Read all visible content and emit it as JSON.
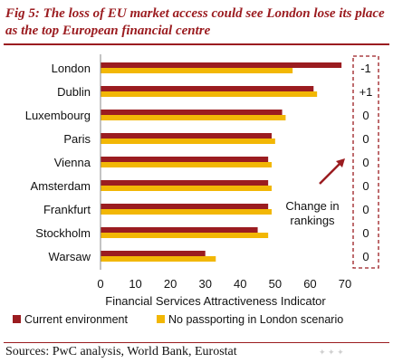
{
  "header": {
    "title": "Fig 5: The loss of EU market access could see London lose its place as the top European financial centre"
  },
  "footer": {
    "source": "Sources: PwC analysis, World Bank, Eurostat"
  },
  "chart_data": {
    "type": "bar",
    "orientation": "horizontal",
    "categories": [
      "London",
      "Dublin",
      "Luxembourg",
      "Paris",
      "Vienna",
      "Amsterdam",
      "Frankfurt",
      "Stockholm",
      "Warsaw"
    ],
    "series": [
      {
        "name": "Current environment",
        "color": "#9b1c20",
        "values": [
          69,
          61,
          52,
          49,
          48,
          48,
          48,
          45,
          30
        ]
      },
      {
        "name": "No passporting in London scenario",
        "color": "#f2b705",
        "values": [
          55,
          62,
          53,
          50,
          49,
          49,
          49,
          48,
          33
        ]
      }
    ],
    "xlabel": "Financial Services Attractiveness Indicator",
    "xlim": [
      0,
      70
    ],
    "xticks": [
      "0",
      "10",
      "20",
      "30",
      "40",
      "50",
      "60",
      "70"
    ],
    "ranking_changes": [
      "-1",
      "+1",
      "0",
      "0",
      "0",
      "0",
      "0",
      "0",
      "0"
    ],
    "annotation": "Change in rankings",
    "grid": false,
    "legend_position": "bottom"
  }
}
